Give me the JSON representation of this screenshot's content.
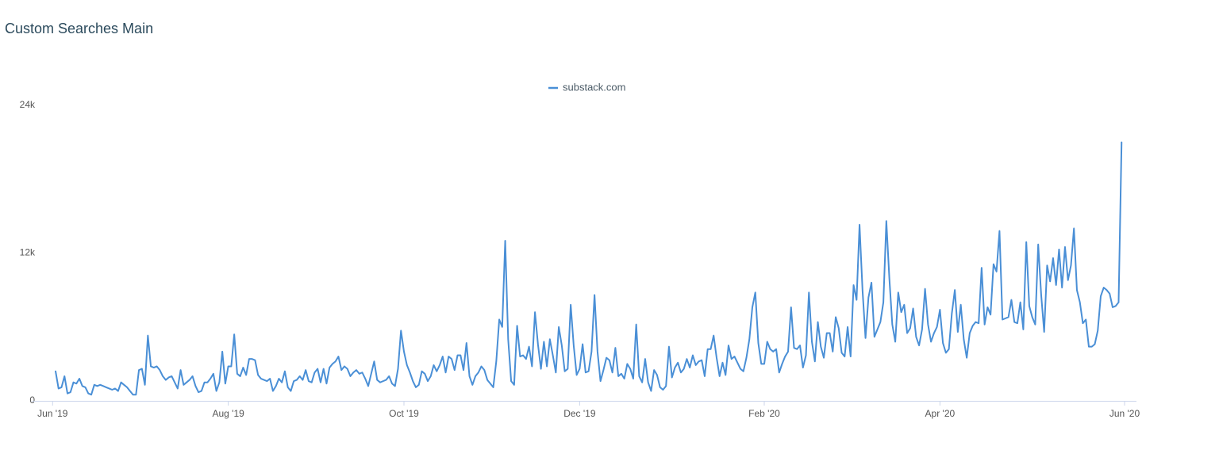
{
  "chart_data": {
    "type": "line",
    "title": "Custom Searches Main",
    "series": [
      {
        "name": "substack.com",
        "color": "#4a8fd6",
        "values": [
          2400,
          1000,
          1100,
          2000,
          600,
          700,
          1500,
          1400,
          1800,
          1200,
          1100,
          600,
          500,
          1300,
          1200,
          1300,
          1200,
          1100,
          1000,
          900,
          1000,
          800,
          1500,
          1300,
          1100,
          800,
          500,
          500,
          2500,
          2600,
          1300,
          5300,
          2800,
          2700,
          2800,
          2500,
          2000,
          1700,
          1900,
          2000,
          1500,
          1000,
          2500,
          1300,
          1500,
          1700,
          2000,
          1200,
          700,
          800,
          1500,
          1500,
          1800,
          2200,
          800,
          1500,
          4000,
          1400,
          2800,
          2800,
          5400,
          2200,
          2000,
          2700,
          2100,
          3400,
          3400,
          3300,
          2100,
          1800,
          1700,
          1600,
          1800,
          800,
          1200,
          1800,
          1500,
          2400,
          1100,
          800,
          1600,
          1700,
          2000,
          1700,
          2500,
          1600,
          1500,
          2300,
          2600,
          1500,
          2600,
          1400,
          2700,
          3000,
          3200,
          3600,
          2500,
          2800,
          2600,
          2000,
          2300,
          2500,
          2200,
          2300,
          1800,
          1200,
          2200,
          3200,
          1700,
          1500,
          1600,
          1700,
          2000,
          1400,
          1200,
          2600,
          5700,
          4000,
          2900,
          2300,
          1600,
          1100,
          1300,
          2400,
          2200,
          1600,
          2000,
          2900,
          2400,
          2900,
          3600,
          2300,
          3600,
          3400,
          2500,
          3700,
          3700,
          2500,
          4700,
          2000,
          1300,
          2000,
          2300,
          2800,
          2500,
          1700,
          1400,
          1100,
          3200,
          6600,
          6000,
          13000,
          5000,
          1600,
          1300,
          6100,
          3600,
          3700,
          3400,
          4400,
          2800,
          7200,
          4600,
          2600,
          4800,
          2800,
          5000,
          3700,
          2300,
          6000,
          4500,
          2400,
          2600,
          7800,
          4500,
          2100,
          2600,
          4600,
          2300,
          2400,
          4000,
          8600,
          4000,
          1600,
          2500,
          3500,
          3300,
          2300,
          4300,
          2000,
          2200,
          1800,
          3000,
          2600,
          1800,
          6200,
          2000,
          1500,
          3400,
          1500,
          800,
          2500,
          2100,
          1100,
          900,
          1200,
          4400,
          1900,
          2700,
          3100,
          2300,
          2600,
          3400,
          2700,
          3700,
          2900,
          3200,
          3300,
          2000,
          4200,
          4200,
          5300,
          3500,
          2000,
          3100,
          2100,
          4500,
          3400,
          3600,
          3100,
          2600,
          2400,
          3500,
          5000,
          7600,
          8800,
          4700,
          3000,
          3000,
          4800,
          4200,
          4000,
          4200,
          2300,
          3000,
          3600,
          4000,
          7600,
          4300,
          4200,
          4500,
          2700,
          3700,
          8800,
          4800,
          3200,
          6400,
          4400,
          3500,
          5500,
          5500,
          4000,
          6800,
          5900,
          3900,
          3600,
          6000,
          3600,
          9400,
          8200,
          14300,
          9000,
          5100,
          8400,
          9600,
          5200,
          5800,
          6400,
          8000,
          14600,
          10000,
          6200,
          4800,
          8800,
          7200,
          7800,
          5500,
          5900,
          7500,
          5200,
          4500,
          5800,
          9100,
          6200,
          4800,
          5500,
          6000,
          7400,
          4700,
          3900,
          4200,
          7100,
          9000,
          5600,
          7800,
          5000,
          3500,
          5500,
          6100,
          6400,
          6300,
          10800,
          6200,
          7600,
          7000,
          11100,
          10500,
          13800,
          6600,
          6700,
          6800,
          8200,
          6400,
          6300,
          8000,
          5800,
          12900,
          7700,
          6800,
          6200,
          12700,
          8600,
          5600,
          11000,
          9700,
          11600,
          9400,
          12300,
          9200,
          12500,
          9800,
          11000,
          14000,
          9000,
          8000,
          6300,
          6600,
          4400,
          4400,
          4600,
          5700,
          8500,
          9200,
          9000,
          8700,
          7600,
          7700,
          8000,
          21000
        ]
      }
    ],
    "xlim": [
      -8,
      363
    ],
    "xticks": [
      {
        "value": -1,
        "label": "Jun '19"
      },
      {
        "value": 58,
        "label": "Aug '19"
      },
      {
        "value": 117,
        "label": "Oct '19"
      },
      {
        "value": 176,
        "label": "Dec '19"
      },
      {
        "value": 238,
        "label": "Feb '20"
      },
      {
        "value": 297,
        "label": "Apr '20"
      },
      {
        "value": 359,
        "label": "Jun '20"
      }
    ],
    "ylim": [
      0,
      24000
    ],
    "yticks": [
      0,
      {
        "value": 12000,
        "label": "12k"
      },
      {
        "value": 24000,
        "label": "24k"
      }
    ],
    "grid": false,
    "legend": "top"
  }
}
